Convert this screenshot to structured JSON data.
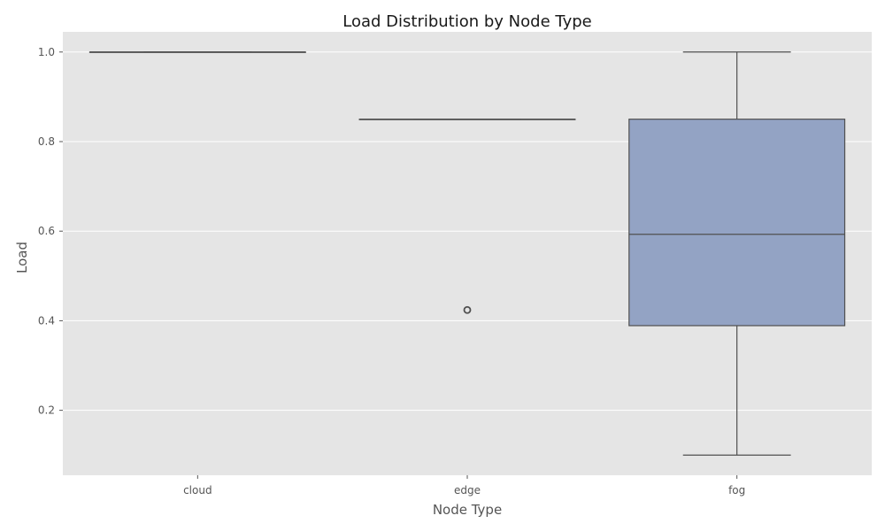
{
  "chart_data": {
    "type": "box",
    "title": "Load Distribution by Node Type",
    "xlabel": "Node Type",
    "ylabel": "Load",
    "categories": [
      "cloud",
      "edge",
      "fog"
    ],
    "ylim": [
      0.055,
      1.045
    ],
    "yticks": [
      0.2,
      0.4,
      0.6,
      0.8,
      1.0
    ],
    "ytick_labels": [
      "0.2",
      "0.4",
      "0.6",
      "0.8",
      "1.0"
    ],
    "grid": true,
    "boxes": [
      {
        "category": "cloud",
        "whisker_low": 1.0,
        "q1": 1.0,
        "median": 1.0,
        "q3": 1.0,
        "whisker_high": 1.0,
        "outliers": []
      },
      {
        "category": "edge",
        "whisker_low": 0.85,
        "q1": 0.85,
        "median": 0.85,
        "q3": 0.85,
        "whisker_high": 0.85,
        "outliers": [
          0.424
        ]
      },
      {
        "category": "fog",
        "whisker_low": 0.1,
        "q1": 0.389,
        "median": 0.593,
        "q3": 0.85,
        "whisker_high": 1.0,
        "outliers": []
      }
    ],
    "colors": {
      "background": "#e5e5e5",
      "grid": "#ffffff",
      "box_fill": "#93a3c4",
      "line": "#4f4f4f"
    }
  }
}
